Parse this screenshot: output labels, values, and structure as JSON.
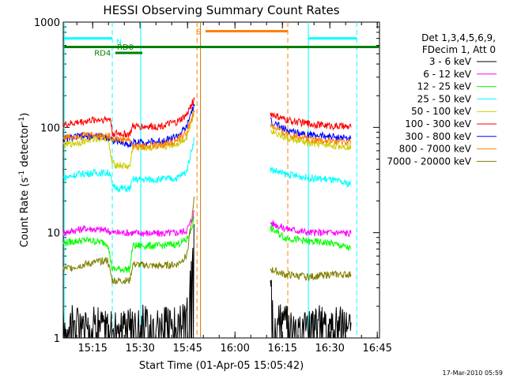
{
  "chart_data": {
    "type": "line",
    "title": "HESSI Observing Summary Count Rates",
    "xlabel": "Start Time (01-Apr-05 15:05:42)",
    "ylabel_main": "Count Rate (s",
    "ylabel_sup1": "-1",
    "ylabel_mid": " detector",
    "ylabel_sup2": "-1",
    "ylabel_end": ")",
    "yscale": "log",
    "ylim": [
      1,
      1000
    ],
    "xlim_minutes": [
      0,
      100
    ],
    "x_ticks": [
      {
        "label": "15:15",
        "m": 9.3
      },
      {
        "label": "15:30",
        "m": 24.3
      },
      {
        "label": "15:45",
        "m": 39.3
      },
      {
        "label": "16:00",
        "m": 54.3
      },
      {
        "label": "16:15",
        "m": 69.3
      },
      {
        "label": "16:30",
        "m": 84.3
      },
      {
        "label": "16:45",
        "m": 99.3
      }
    ],
    "y_ticks": [
      {
        "label": "1",
        "v": 1
      },
      {
        "label": "10",
        "v": 10
      },
      {
        "label": "100",
        "v": 100
      },
      {
        "label": "1000",
        "v": 1000
      }
    ],
    "legend_header": [
      "Det 1,3,4,5,6,9,",
      "FDecim 1, Att 0"
    ],
    "legend_placement": "top-right, outside plot",
    "series": [
      {
        "name": "3 - 6 keV",
        "color": "#000000",
        "segments": [
          [
            [
              0,
              1.5
            ],
            [
              7,
              1.6
            ],
            [
              14,
              1.4
            ],
            [
              21,
              1.5
            ],
            [
              25,
              1.6
            ],
            [
              30,
              1.5
            ],
            [
              36,
              1.5
            ],
            [
              38,
              1.6
            ],
            [
              39.5,
              2
            ],
            [
              40.8,
              6
            ],
            [
              41.5,
              12
            ]
          ],
          [
            [
              65.5,
              3
            ],
            [
              67,
              1.8
            ],
            [
              72,
              1.5
            ],
            [
              78,
              1.5
            ],
            [
              84,
              1.6
            ],
            [
              88,
              1.5
            ],
            [
              91,
              1.4
            ]
          ]
        ]
      },
      {
        "name": "6 - 12 keV",
        "color": "#ff00ff",
        "segments": [
          [
            [
              0,
              10
            ],
            [
              7,
              11
            ],
            [
              14,
              10.5
            ],
            [
              15.5,
              10
            ],
            [
              21,
              10
            ],
            [
              30,
              9.8
            ],
            [
              36,
              10
            ],
            [
              39,
              10.5
            ],
            [
              40.5,
              13
            ],
            [
              41.5,
              16
            ]
          ],
          [
            [
              65.5,
              12.5
            ],
            [
              70,
              11
            ],
            [
              78,
              10
            ],
            [
              84,
              10
            ],
            [
              88,
              10
            ],
            [
              91,
              9.8
            ]
          ]
        ]
      },
      {
        "name": "12 - 25 keV",
        "color": "#00ff00",
        "segments": [
          [
            [
              0,
              8
            ],
            [
              7,
              8.5
            ],
            [
              14,
              8
            ],
            [
              15.5,
              4.5
            ],
            [
              21,
              4.5
            ],
            [
              22,
              7.5
            ],
            [
              30,
              7.5
            ],
            [
              36,
              7.8
            ],
            [
              39,
              8.5
            ],
            [
              40.5,
              11
            ],
            [
              41.5,
              14
            ]
          ],
          [
            [
              65.5,
              11
            ],
            [
              70,
              9
            ],
            [
              78,
              8.2
            ],
            [
              84,
              8
            ],
            [
              88,
              7.5
            ],
            [
              91,
              7
            ]
          ]
        ]
      },
      {
        "name": "25 - 50 keV",
        "color": "#00ffff",
        "segments": [
          [
            [
              0,
              33
            ],
            [
              5,
              36
            ],
            [
              10,
              37
            ],
            [
              15,
              37
            ],
            [
              15.5,
              27
            ],
            [
              21,
              26
            ],
            [
              22,
              32
            ],
            [
              30,
              32
            ],
            [
              36,
              33
            ],
            [
              39,
              38
            ],
            [
              40.5,
              60
            ],
            [
              41.5,
              80
            ]
          ],
          [
            [
              65.5,
              40
            ],
            [
              70,
              36
            ],
            [
              78,
              33
            ],
            [
              84,
              32
            ],
            [
              88,
              30
            ],
            [
              91,
              29
            ]
          ]
        ]
      },
      {
        "name": "50 - 100 keV",
        "color": "#cccc00",
        "segments": [
          [
            [
              0,
              68
            ],
            [
              5,
              72
            ],
            [
              10,
              78
            ],
            [
              14,
              80
            ],
            [
              15.5,
              45
            ],
            [
              21,
              42
            ],
            [
              22,
              65
            ],
            [
              30,
              64
            ],
            [
              36,
              70
            ],
            [
              39,
              80
            ],
            [
              40.5,
              115
            ],
            [
              41.5,
              140
            ]
          ],
          [
            [
              65.5,
              95
            ],
            [
              70,
              80
            ],
            [
              78,
              70
            ],
            [
              84,
              68
            ],
            [
              88,
              66
            ],
            [
              91,
              66
            ]
          ]
        ]
      },
      {
        "name": "100 - 300 keV",
        "color": "#ff0000",
        "segments": [
          [
            [
              0,
              105
            ],
            [
              5,
              112
            ],
            [
              10,
              118
            ],
            [
              15,
              120
            ],
            [
              15.5,
              88
            ],
            [
              21,
              86
            ],
            [
              22,
              102
            ],
            [
              30,
              102
            ],
            [
              36,
              112
            ],
            [
              39,
              130
            ],
            [
              40.5,
              165
            ],
            [
              41.5,
              185
            ]
          ],
          [
            [
              65.5,
              135
            ],
            [
              70,
              118
            ],
            [
              78,
              108
            ],
            [
              84,
              104
            ],
            [
              88,
              102
            ],
            [
              91,
              100
            ]
          ]
        ]
      },
      {
        "name": "300 - 800 keV",
        "color": "#0000ff",
        "segments": [
          [
            [
              0,
              78
            ],
            [
              5,
              82
            ],
            [
              10,
              83
            ],
            [
              15,
              80
            ],
            [
              15.5,
              76
            ],
            [
              21,
              68
            ],
            [
              22,
              72
            ],
            [
              30,
              73
            ],
            [
              36,
              82
            ],
            [
              39,
              100
            ],
            [
              40.5,
              140
            ],
            [
              41.5,
              160
            ]
          ],
          [
            [
              65.5,
              115
            ],
            [
              70,
              95
            ],
            [
              78,
              85
            ],
            [
              84,
              82
            ],
            [
              88,
              80
            ],
            [
              91,
              78
            ]
          ]
        ]
      },
      {
        "name": "800 - 7000 keV",
        "color": "#ff8000",
        "segments": [
          [
            [
              0,
              80
            ],
            [
              5,
              84
            ],
            [
              10,
              85
            ],
            [
              15,
              82
            ],
            [
              15.5,
              78
            ],
            [
              21,
              76
            ],
            [
              22,
              66
            ],
            [
              30,
              67
            ],
            [
              36,
              75
            ],
            [
              39,
              90
            ],
            [
              40.5,
              120
            ],
            [
              41.5,
              140
            ]
          ],
          [
            [
              65.5,
              105
            ],
            [
              70,
              88
            ],
            [
              78,
              78
            ],
            [
              84,
              74
            ],
            [
              88,
              72
            ],
            [
              91,
              72
            ]
          ]
        ]
      },
      {
        "name": "7000 - 20000 keV",
        "color": "#808000",
        "segments": [
          [
            [
              0,
              4.5
            ],
            [
              7,
              5
            ],
            [
              14,
              5.5
            ],
            [
              15.5,
              3.5
            ],
            [
              21,
              3.5
            ],
            [
              22,
              5
            ],
            [
              30,
              4.8
            ],
            [
              36,
              5
            ],
            [
              39,
              6
            ],
            [
              40.5,
              12
            ],
            [
              41.5,
              22
            ]
          ],
          [
            [
              65.5,
              4.5
            ],
            [
              70,
              4
            ],
            [
              78,
              3.8
            ],
            [
              84,
              4
            ],
            [
              88,
              4
            ],
            [
              91,
              4
            ]
          ]
        ]
      }
    ],
    "vlines": [
      {
        "m": 0.3,
        "color": "#00ffff",
        "style": "solid"
      },
      {
        "m": 15.5,
        "color": "#00ffff",
        "style": "dashed"
      },
      {
        "m": 24.5,
        "color": "#00ffff",
        "style": "solid"
      },
      {
        "m": 42.3,
        "color": "#ff8000",
        "style": "dashed"
      },
      {
        "m": 43.4,
        "color": "#cc7a00",
        "style": "solid"
      },
      {
        "m": 71,
        "color": "#ff8000",
        "style": "dashed"
      },
      {
        "m": 77.5,
        "color": "#00ffff",
        "style": "solid"
      },
      {
        "m": 92.8,
        "color": "#00ffff",
        "style": "dashed"
      }
    ],
    "flag_bars": [
      {
        "label": "",
        "color": "#00ffff",
        "m0": 0.3,
        "m1": 15.5,
        "v": 700
      },
      {
        "label": "",
        "color": "#00ffff",
        "m0": 77.5,
        "m1": 92.8,
        "v": 700
      },
      {
        "label": "RD4",
        "color": "#008000",
        "m0": 0.3,
        "m1": 100,
        "v": 580
      },
      {
        "label": "RD0",
        "color": "#008000",
        "m0": 16.5,
        "m1": 25,
        "v": 510
      },
      {
        "label": "S",
        "color": "#ff8000",
        "m0": 45,
        "m1": 71,
        "v": 820
      },
      {
        "label": "N",
        "color": "#00ffff",
        "m0": 17.5,
        "m1": 17.5,
        "v": 650
      }
    ]
  },
  "footer": {
    "date_stamp": "17-Mar-2010 05:59"
  }
}
